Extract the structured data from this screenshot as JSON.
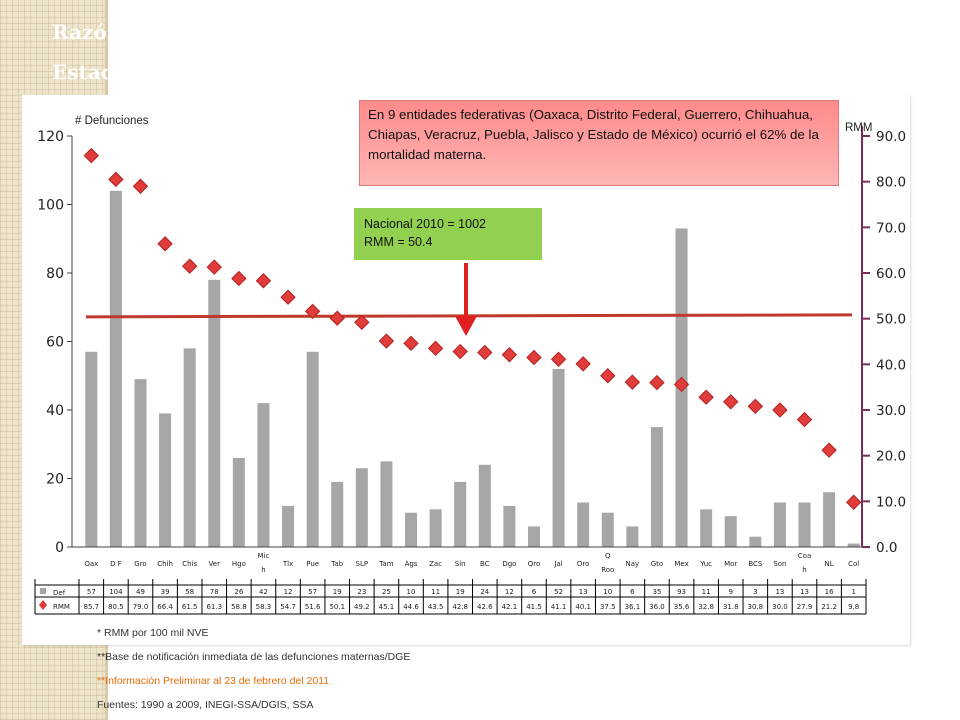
{
  "title": {
    "line1": "Razó",
    "line2": "Estad"
  },
  "callouts": {
    "pink": "En 9 entidades federativas (Oaxaca, Distrito Federal, Guerrero, Chihuahua, Chiapas, Veracruz, Puebla, Jalisco y Estado de México) ocurrió el 62% de la mortalidad materna.",
    "green_line1": "Nacional  2010 = 1002",
    "green_line2": "RMM = 50.4"
  },
  "footnotes": {
    "note1": "* RMM por 100 mil NVE",
    "note2": "**Base de notificación inmediata de las defunciones maternas/DGE",
    "note3": "**Información Preliminar al 23 de febrero del 2011",
    "note4": "Fuentes: 1990 a 2009, INEGI-SSA/DGIS, SSA"
  },
  "colors": {
    "bars": "#a6a6a6",
    "markers": "#e03c3c",
    "marker_stroke": "#b22222",
    "national_line": "#c0392b",
    "arrow": "#e02020",
    "right_axis": "#7b2c5e",
    "callout_pink": "#ff9f9f",
    "callout_green": "#92d050"
  },
  "chart_data": {
    "type": "bar",
    "categories": [
      "Oax",
      "DF",
      "Gro",
      "Chih",
      "Chis",
      "Ver",
      "Hgo",
      "Mich",
      "Tlx",
      "Pue",
      "Tab",
      "SLP",
      "Tam",
      "Ags",
      "Zac",
      "Sin",
      "BC",
      "Dgo",
      "Qro",
      "Jal",
      "Oro",
      "Q Roo",
      "Nay",
      "Gto",
      "Mex",
      "Yuc",
      "Mor",
      "BCS",
      "Son",
      "Coah",
      "NL",
      "Col"
    ],
    "category_labels": [
      "Oax",
      "D F",
      "Gro",
      "Chih",
      "Chis",
      "Ver",
      "Hgo",
      "Mic h",
      "Tlx",
      "Pue",
      "Tab",
      "SLP",
      "Tam",
      "Ags",
      "Zac",
      "Sin",
      "BC",
      "Dgo",
      "Qro",
      "Jal",
      "Oro",
      "Q Roo",
      "Nay",
      "Gto",
      "Mex",
      "Yuc",
      "Mor",
      "BCS",
      "Son",
      "Coa h",
      "NL",
      "Col"
    ],
    "series": [
      {
        "name": "Def",
        "type": "bar",
        "axis": "left",
        "values": [
          57,
          104,
          49,
          39,
          58,
          78,
          26,
          42,
          12,
          57,
          19,
          23,
          25,
          10,
          11,
          19,
          24,
          12,
          6,
          52,
          13,
          10,
          6,
          35,
          93,
          11,
          9,
          3,
          13,
          13,
          16,
          1
        ]
      },
      {
        "name": "RMM",
        "type": "scatter",
        "axis": "right",
        "values": [
          85.7,
          80.5,
          79.0,
          66.4,
          61.5,
          61.3,
          58.8,
          58.3,
          54.7,
          51.6,
          50.1,
          49.2,
          45.1,
          44.6,
          43.5,
          42.8,
          42.6,
          42.1,
          41.5,
          41.1,
          40.1,
          37.5,
          36.1,
          36.0,
          35.6,
          32.8,
          31.8,
          30.8,
          30.0,
          27.9,
          21.2,
          9.8
        ]
      }
    ],
    "table_values": {
      "Def": [
        "57",
        "104",
        "49",
        "39",
        "58",
        "78",
        "26",
        "42",
        "12",
        "57",
        "19",
        "23",
        "25",
        "10",
        "11",
        "19",
        "24",
        "12",
        "6",
        "52",
        "13",
        "10",
        "6",
        "35",
        "93",
        "11",
        "9",
        "3",
        "13",
        "13",
        "16",
        "1"
      ],
      "RMM": [
        "85.7",
        "80.5",
        "79.0",
        "66.4",
        "61.5",
        "61.3",
        "58.8",
        "58.3",
        "54.7",
        "51.6",
        "50.1",
        "49.2",
        "45.1",
        "44.6",
        "43.5",
        "42.8",
        "42.6",
        "42.1",
        "41.5",
        "41.1",
        "40.1",
        "37.5",
        "36.1",
        "36.0",
        "35.6",
        "32.8",
        "31.8",
        "30.8",
        "30.0",
        "27.9",
        "21.2",
        "9.8"
      ]
    },
    "table_row_labels": [
      "Def",
      "RMM"
    ],
    "national_rmm": 50.4,
    "ylabel_left": "# Defunciones",
    "ylabel_right": "RMM",
    "ylim_left": [
      0,
      120
    ],
    "yticks_left": [
      "0",
      "20",
      "40",
      "60",
      "80",
      "100",
      "120"
    ],
    "ylim_right": [
      0,
      90
    ],
    "yticks_right": [
      "0.0",
      "10.0",
      "20.0",
      "30.0",
      "40.0",
      "50.0",
      "60.0",
      "70.0",
      "80.0",
      "90.0"
    ],
    "grid": false
  }
}
